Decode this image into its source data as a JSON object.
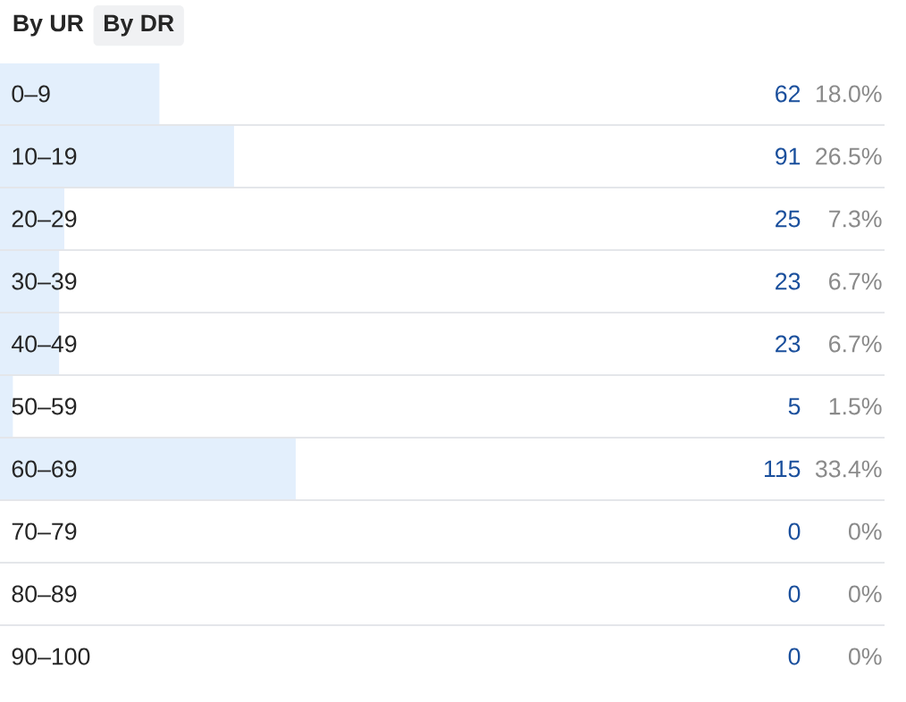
{
  "chart_data": {
    "type": "bar",
    "orientation": "horizontal",
    "annotations": [
      "By UR",
      "By DR",
      "18.0%",
      "26.5%",
      "7.3%",
      "6.7%",
      "6.7%",
      "1.5%",
      "33.4%",
      "0%",
      "0%",
      "0%"
    ],
    "categories": [
      "0–9",
      "10–19",
      "20–29",
      "30–39",
      "40–49",
      "50–59",
      "60–69",
      "70–79",
      "80–89",
      "90–100"
    ],
    "values": [
      62,
      91,
      25,
      23,
      23,
      5,
      115,
      0,
      0,
      0
    ],
    "data_labels": true,
    "color": "#e3effc"
  }
}
